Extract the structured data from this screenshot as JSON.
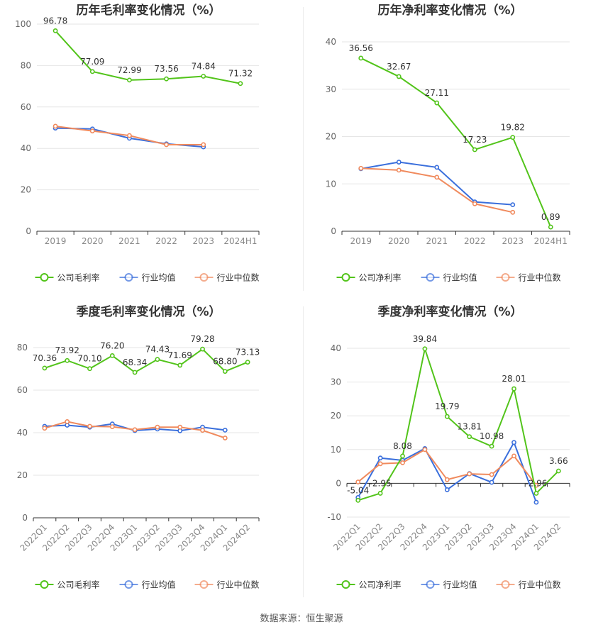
{
  "footer": {
    "source": "数据来源：恒生聚源"
  },
  "colors": {
    "company": "#52c41a",
    "avg": "#3a6fdc",
    "median": "#f08a5d",
    "grid": "#e6e6e6",
    "axis": "#333333"
  },
  "chart_data": [
    {
      "type": "line",
      "title": "历年毛利率变化情况（%）",
      "categories": [
        "2019",
        "2020",
        "2021",
        "2022",
        "2023",
        "2024H1"
      ],
      "ylim": [
        0,
        100
      ],
      "yticks": [
        0,
        20,
        40,
        60,
        80,
        100
      ],
      "grid": true,
      "legend_position": "bottom",
      "series": [
        {
          "name": "公司毛利率",
          "role": "company",
          "values": [
            96.78,
            77.09,
            72.99,
            73.56,
            74.84,
            71.32
          ],
          "labels": [
            "96.78",
            "77.09",
            "72.99",
            "73.56",
            "74.84",
            "71.32"
          ]
        },
        {
          "name": "行业均值",
          "role": "avg",
          "values": [
            49.8,
            49.4,
            44.9,
            42.2,
            40.7,
            null
          ]
        },
        {
          "name": "行业中位数",
          "role": "median",
          "values": [
            50.7,
            48.4,
            46.2,
            41.8,
            41.8,
            null
          ]
        }
      ]
    },
    {
      "type": "line",
      "title": "历年净利率变化情况（%）",
      "categories": [
        "2019",
        "2020",
        "2021",
        "2022",
        "2023",
        "2024H1"
      ],
      "ylim": [
        0,
        40
      ],
      "yticks": [
        0,
        10,
        20,
        30,
        40
      ],
      "grid": true,
      "legend_position": "bottom",
      "series": [
        {
          "name": "公司净利率",
          "role": "company",
          "values": [
            36.56,
            32.67,
            27.11,
            17.23,
            19.82,
            0.89
          ],
          "labels": [
            "36.56",
            "32.67",
            "27.11",
            "17.23",
            "19.82",
            "0.89"
          ]
        },
        {
          "name": "行业均值",
          "role": "avg",
          "values": [
            13.2,
            14.6,
            13.5,
            6.2,
            5.6,
            null
          ]
        },
        {
          "name": "行业中位数",
          "role": "median",
          "values": [
            13.3,
            12.9,
            11.4,
            5.8,
            4.0,
            null
          ]
        }
      ]
    },
    {
      "type": "line",
      "title": "季度毛利率变化情况（%）",
      "categories": [
        "2022Q1",
        "2022Q2",
        "2022Q3",
        "2022Q4",
        "2023Q1",
        "2023Q2",
        "2023Q3",
        "2023Q4",
        "2024Q1",
        "2024Q2"
      ],
      "ylim": [
        0,
        80
      ],
      "yticks": [
        0,
        20,
        40,
        60,
        80
      ],
      "grid": true,
      "legend_position": "bottom",
      "series": [
        {
          "name": "公司毛利率",
          "role": "company",
          "values": [
            70.36,
            73.92,
            70.1,
            76.2,
            68.34,
            74.43,
            71.69,
            79.28,
            68.8,
            73.13
          ],
          "labels": [
            "70.36",
            "73.92",
            "70.10",
            "76.20",
            "68.34",
            "74.43",
            "71.69",
            "79.28",
            "68.80",
            "73.13"
          ]
        },
        {
          "name": "行业均值",
          "role": "avg",
          "values": [
            43.0,
            43.5,
            42.6,
            44.1,
            41.0,
            41.7,
            40.9,
            42.6,
            41.2,
            null
          ]
        },
        {
          "name": "行业中位数",
          "role": "median",
          "values": [
            42.1,
            45.2,
            43.0,
            42.8,
            41.4,
            42.6,
            42.6,
            41.1,
            37.5,
            null
          ]
        }
      ]
    },
    {
      "type": "line",
      "title": "季度净利率变化情况（%）",
      "categories": [
        "2022Q1",
        "2022Q2",
        "2022Q3",
        "2022Q4",
        "2023Q1",
        "2023Q2",
        "2023Q3",
        "2023Q4",
        "2024Q1",
        "2024Q2"
      ],
      "ylim": [
        -10,
        40
      ],
      "yticks": [
        -10,
        0,
        10,
        20,
        30,
        40
      ],
      "grid": true,
      "legend_position": "bottom",
      "series": [
        {
          "name": "公司净利率",
          "role": "company",
          "values": [
            -5.04,
            -2.95,
            8.08,
            39.84,
            19.79,
            13.81,
            10.98,
            28.01,
            -2.96,
            3.66
          ],
          "labels": [
            "-5.04",
            "-2.95",
            "8.08",
            "39.84",
            "19.79",
            "13.81",
            "10.98",
            "28.01",
            "-2.96",
            "3.66"
          ]
        },
        {
          "name": "行业均值",
          "role": "avg",
          "values": [
            -4.2,
            7.5,
            6.8,
            10.3,
            -1.9,
            2.9,
            0.3,
            12.1,
            -5.6,
            null
          ]
        },
        {
          "name": "行业中位数",
          "role": "median",
          "values": [
            0.4,
            5.8,
            6.1,
            10.0,
            1.1,
            2.8,
            2.6,
            8.1,
            -0.6,
            null
          ]
        }
      ]
    }
  ]
}
